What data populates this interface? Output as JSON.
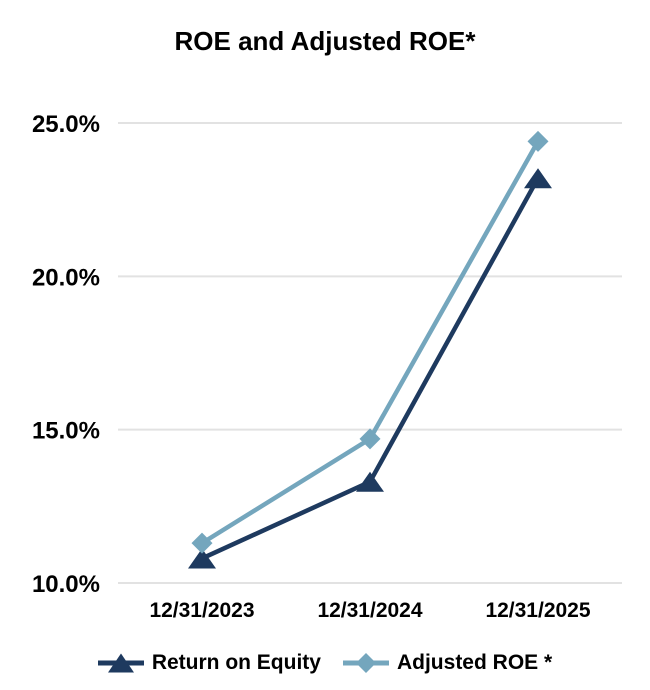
{
  "chart_data": {
    "type": "line",
    "title": "ROE and Adjusted ROE*",
    "categories": [
      "12/31/2023",
      "12/31/2024",
      "12/31/2025"
    ],
    "series": [
      {
        "name": "Return on Equity",
        "marker": "triangle",
        "color": "#1e3a5f",
        "values": [
          10.8,
          13.3,
          23.2
        ]
      },
      {
        "name": "Adjusted ROE *",
        "marker": "diamond",
        "color": "#74a6bd",
        "values": [
          11.3,
          14.7,
          24.4
        ]
      }
    ],
    "y_axis": {
      "tick_labels": [
        "10.0%",
        "15.0%",
        "20.0%",
        "25.0%"
      ],
      "tick_values": [
        10,
        15,
        20,
        25
      ],
      "min": 10,
      "max": 26.5,
      "unit": "percent"
    },
    "grid": "horizontal",
    "legend_position": "bottom",
    "colors": {
      "gridline": "#e2e2e2",
      "text": "#000000",
      "background": "#ffffff"
    }
  }
}
